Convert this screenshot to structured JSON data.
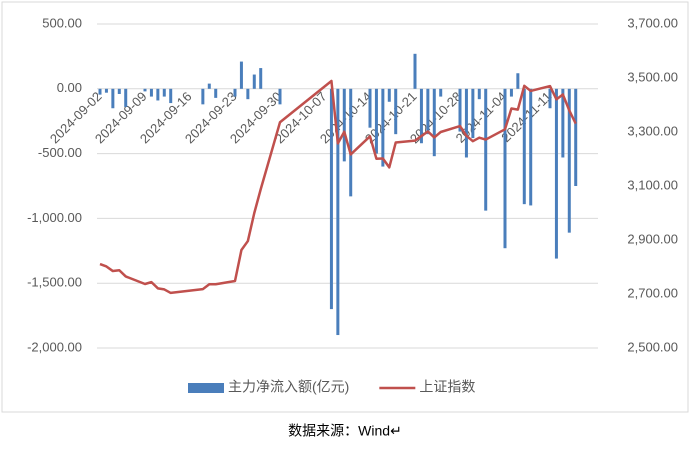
{
  "chart_data": {
    "type": "bar-line",
    "x": [
      "2024-09-02",
      "2024-09-03",
      "2024-09-04",
      "2024-09-05",
      "2024-09-06",
      "2024-09-09",
      "2024-09-10",
      "2024-09-11",
      "2024-09-12",
      "2024-09-13",
      "2024-09-18",
      "2024-09-19",
      "2024-09-20",
      "2024-09-23",
      "2024-09-24",
      "2024-09-25",
      "2024-09-26",
      "2024-09-27",
      "2024-09-30",
      "2024-10-08",
      "2024-10-09",
      "2024-10-10",
      "2024-10-11",
      "2024-10-14",
      "2024-10-15",
      "2024-10-16",
      "2024-10-17",
      "2024-10-18",
      "2024-10-21",
      "2024-10-22",
      "2024-10-23",
      "2024-10-24",
      "2024-10-25",
      "2024-10-28",
      "2024-10-29",
      "2024-10-30",
      "2024-10-31",
      "2024-11-01",
      "2024-11-04",
      "2024-11-05",
      "2024-11-06",
      "2024-11-07",
      "2024-11-08",
      "2024-11-11",
      "2024-11-12",
      "2024-11-13",
      "2024-11-14",
      "2024-11-15"
    ],
    "xlim": [
      "2024-09-02",
      "2024-11-18"
    ],
    "xticks": [
      "2024-09-02",
      "2024-09-09",
      "2024-09-16",
      "2024-09-23",
      "2024-09-30",
      "2024-10-07",
      "2024-10-14",
      "2024-10-21",
      "2024-10-28",
      "2024-11-04",
      "2024-11-11"
    ],
    "series": [
      {
        "name": "主力净流入额(亿元)",
        "color": "#4a7ebb",
        "kind": "bar",
        "axis": "y",
        "values": [
          -45,
          -30,
          -150,
          -40,
          -140,
          -20,
          -60,
          -90,
          -60,
          -110,
          -120,
          40,
          -70,
          -60,
          210,
          -80,
          110,
          160,
          -120,
          -1700,
          -1900,
          -560,
          -830,
          -300,
          -500,
          -600,
          -100,
          -350,
          270,
          -420,
          -350,
          -520,
          -60,
          -330,
          -530,
          -380,
          -80,
          -940,
          -1230,
          -60,
          120,
          -890,
          -900,
          -150,
          -1310,
          -530,
          -1110,
          -750
        ]
      },
      {
        "name": "上证指数",
        "color": "#c0504d",
        "kind": "line",
        "axis": "y2",
        "values": [
          2811,
          2802,
          2785,
          2788,
          2765,
          2737,
          2744,
          2721,
          2717,
          2704,
          2718,
          2736,
          2736,
          2748,
          2863,
          2896,
          3000,
          3088,
          3336,
          3489,
          3258,
          3301,
          3217,
          3284,
          3201,
          3202,
          3169,
          3261,
          3268,
          3285,
          3302,
          3280,
          3300,
          3322,
          3286,
          3266,
          3279,
          3272,
          3310,
          3387,
          3383,
          3471,
          3452,
          3470,
          3421,
          3439,
          3380,
          3331
        ]
      }
    ],
    "ylim": [
      -2000,
      500
    ],
    "yticks": [
      {
        "value": 500,
        "label": "500.00"
      },
      {
        "value": 0,
        "label": "0.00"
      },
      {
        "value": -500,
        "label": "-500.00"
      },
      {
        "value": -1000,
        "label": "-1,000.00"
      },
      {
        "value": -1500,
        "label": "-1,500.00"
      },
      {
        "value": -2000,
        "label": "-2,000.00"
      }
    ],
    "y2lim": [
      2500,
      3700
    ],
    "y2ticks": [
      {
        "value": 3700,
        "label": "3,700.00"
      },
      {
        "value": 3500,
        "label": "3,500.00"
      },
      {
        "value": 3300,
        "label": "3,300.00"
      },
      {
        "value": 3100,
        "label": "3,100.00"
      },
      {
        "value": 2900,
        "label": "2,900.00"
      },
      {
        "value": 2700,
        "label": "2,700.00"
      },
      {
        "value": 2500,
        "label": "2,500.00"
      }
    ],
    "grid": true,
    "legend": "bottom",
    "source": "数据来源：Wind↵"
  }
}
